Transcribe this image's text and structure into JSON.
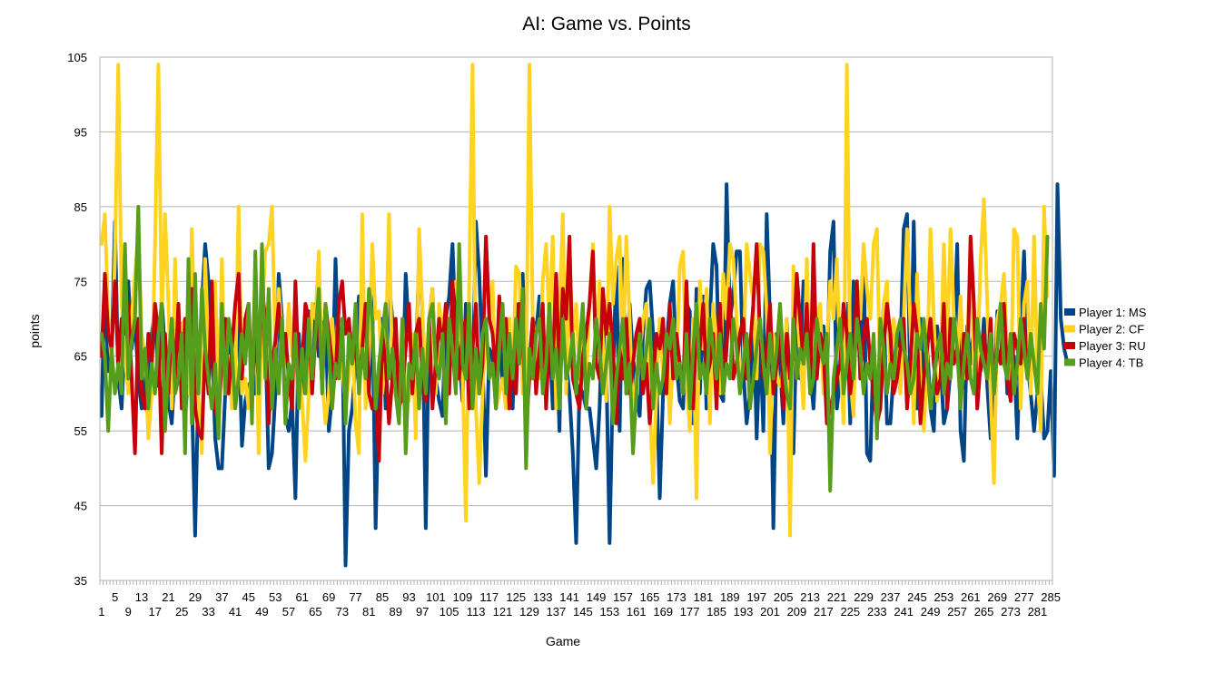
{
  "chart_data": {
    "type": "line",
    "title": "AI: Game vs. Points",
    "xlabel": "Game",
    "ylabel": "points",
    "ylim": [
      35,
      105
    ],
    "yticks": [
      35,
      45,
      55,
      65,
      75,
      85,
      95,
      105
    ],
    "grid": "horizontal",
    "legend_position": "right",
    "x_count": 285,
    "x_tick_step": 4,
    "series": [
      {
        "name": "Player 1: MS",
        "color": "#004586",
        "values": [
          57,
          76,
          63,
          65,
          83,
          62,
          58,
          68,
          75,
          66,
          70,
          62,
          58,
          64,
          55,
          68,
          71,
          61,
          73,
          65,
          59,
          56,
          64,
          70,
          68,
          57,
          63,
          60,
          41,
          62,
          72,
          80,
          75,
          68,
          54,
          50,
          50,
          60,
          66,
          68,
          67,
          70,
          53,
          59,
          61,
          62,
          60,
          66,
          70,
          68,
          50,
          52,
          60,
          76,
          70,
          57,
          55,
          59,
          46,
          68,
          60,
          69,
          71,
          66,
          72,
          65,
          69,
          70,
          55,
          60,
          78,
          64,
          70,
          37,
          55,
          58,
          64,
          73,
          70,
          69,
          60,
          73,
          42,
          61,
          70,
          58,
          75,
          70,
          60,
          63,
          59,
          76,
          68,
          65,
          62,
          79,
          71,
          42,
          70,
          74,
          62,
          59,
          57,
          70,
          73,
          80,
          68,
          65,
          59,
          72,
          70,
          60,
          83,
          76,
          64,
          49,
          66,
          65,
          58,
          69,
          61,
          69,
          70,
          58,
          72,
          69,
          76,
          62,
          64,
          70,
          68,
          73,
          66,
          63,
          68,
          58,
          70,
          55,
          78,
          64,
          60,
          52,
          40,
          61,
          60,
          58,
          58,
          54,
          50,
          58,
          72,
          64,
          40,
          62,
          77,
          55,
          78,
          60,
          72,
          65,
          60,
          57,
          68,
          74,
          75,
          68,
          63,
          46,
          60,
          66,
          72,
          75,
          64,
          59,
          58,
          72,
          71,
          56,
          74,
          60,
          73,
          58,
          70,
          80,
          77,
          60,
          59,
          88,
          70,
          73,
          79,
          79,
          63,
          56,
          60,
          72,
          54,
          67,
          55,
          84,
          70,
          42,
          68,
          64,
          56,
          70,
          60,
          52,
          70,
          62,
          75,
          70,
          63,
          58,
          67,
          65,
          69,
          62,
          79,
          83,
          58,
          62,
          60,
          72,
          56,
          75,
          68,
          65,
          79,
          52,
          51,
          67,
          58,
          62,
          72,
          56,
          56,
          63,
          68,
          66,
          82,
          84,
          60,
          83,
          58,
          70,
          62,
          67,
          58,
          55,
          69,
          64,
          56,
          58,
          63,
          67,
          80,
          55,
          51,
          69,
          64,
          69,
          64,
          63,
          70,
          61,
          54,
          58,
          71,
          69,
          70,
          60,
          62,
          65,
          54,
          68,
          79,
          64,
          60,
          55,
          60,
          62,
          54,
          55,
          63,
          49,
          88,
          70,
          66,
          64
        ]
      },
      {
        "name": "Player 2: CF",
        "color": "#ffd320",
        "values": [
          80,
          84,
          70,
          64,
          78,
          104,
          72,
          65,
          60,
          70,
          76,
          81,
          68,
          65,
          54,
          60,
          80,
          104,
          70,
          84,
          72,
          58,
          78,
          62,
          69,
          70,
          60,
          82,
          65,
          59,
          52,
          78,
          65,
          72,
          75,
          59,
          78,
          60,
          65,
          58,
          62,
          85,
          60,
          62,
          58,
          64,
          76,
          52,
          70,
          79,
          80,
          85,
          66,
          74,
          68,
          64,
          72,
          65,
          66,
          64,
          59,
          51,
          60,
          72,
          70,
          79,
          62,
          56,
          60,
          70,
          63,
          62,
          64,
          58,
          62,
          68,
          56,
          52,
          84,
          58,
          65,
          80,
          70,
          71,
          60,
          65,
          84,
          62,
          66,
          58,
          70,
          60,
          59,
          68,
          54,
          82,
          71,
          62,
          70,
          74,
          60,
          72,
          68,
          72,
          62,
          74,
          75,
          71,
          63,
          43,
          75,
          104,
          58,
          48,
          60,
          70,
          70,
          75,
          58,
          60,
          62,
          58,
          70,
          62,
          77,
          76,
          60,
          60,
          104,
          70,
          65,
          62,
          75,
          80,
          69,
          81,
          58,
          70,
          84,
          60,
          78,
          68,
          72,
          62,
          70,
          62,
          72,
          80,
          66,
          75,
          67,
          59,
          85,
          72,
          78,
          81,
          65,
          81,
          70,
          56,
          62,
          65,
          70,
          72,
          59,
          48,
          60,
          70,
          62,
          68,
          56,
          65,
          63,
          77,
          79,
          62,
          55,
          70,
          46,
          75,
          66,
          74,
          56,
          72,
          67,
          60,
          76,
          70,
          80,
          78,
          70,
          63,
          64,
          80,
          76,
          72,
          62,
          80,
          79,
          71,
          52,
          68,
          62,
          61,
          64,
          70,
          41,
          77,
          72,
          65,
          58,
          78,
          62,
          74,
          70,
          72,
          60,
          66,
          75,
          70,
          78,
          64,
          56,
          104,
          62,
          57,
          75,
          70,
          80,
          74,
          70,
          80,
          82,
          60,
          72,
          75,
          63,
          70,
          65,
          60,
          70,
          82,
          69,
          56,
          76,
          62,
          55,
          63,
          82,
          70,
          59,
          63,
          80,
          66,
          82,
          70,
          64,
          73,
          62,
          66,
          81,
          63,
          63,
          78,
          86,
          72,
          60,
          48,
          70,
          72,
          76,
          65,
          60,
          82,
          81,
          58,
          72,
          75,
          60,
          81,
          62,
          55,
          85,
          73
        ]
      },
      {
        "name": "Player 3: RU",
        "color": "#c5000b",
        "values": [
          65,
          76,
          68,
          66,
          75,
          64,
          70,
          68,
          72,
          62,
          52,
          70,
          60,
          58,
          68,
          64,
          72,
          68,
          52,
          68,
          60,
          70,
          62,
          72,
          58,
          70,
          65,
          74,
          58,
          55,
          54,
          66,
          60,
          75,
          58,
          56,
          65,
          70,
          60,
          66,
          72,
          76,
          62,
          70,
          72,
          60,
          68,
          62,
          74,
          70,
          56,
          64,
          67,
          72,
          64,
          68,
          62,
          58,
          75,
          62,
          64,
          72,
          70,
          60,
          68,
          70,
          61,
          72,
          68,
          64,
          62,
          72,
          75,
          68,
          70,
          64,
          67,
          62,
          66,
          72,
          60,
          58,
          60,
          51,
          68,
          64,
          56,
          62,
          70,
          58,
          60,
          66,
          72,
          60,
          68,
          70,
          62,
          59,
          70,
          58,
          64,
          70,
          66,
          72,
          60,
          75,
          64,
          62,
          68,
          70,
          58,
          66,
          72,
          60,
          64,
          81,
          70,
          68,
          62,
          73,
          66,
          70,
          58,
          64,
          60,
          72,
          68,
          55,
          62,
          70,
          60,
          66,
          72,
          58,
          68,
          64,
          76,
          62,
          74,
          70,
          81,
          62,
          60,
          58,
          65,
          68,
          72,
          79,
          64,
          62,
          74,
          68,
          72,
          66,
          56,
          66,
          62,
          70,
          60,
          64,
          68,
          70,
          60,
          64,
          56,
          62,
          68,
          66,
          70,
          60,
          72,
          62,
          68,
          64,
          60,
          75,
          62,
          58,
          70,
          66,
          72,
          62,
          64,
          68,
          58,
          72,
          60,
          66,
          74,
          62,
          64,
          68,
          70,
          62,
          66,
          72,
          80,
          68,
          62,
          66,
          72,
          60,
          64,
          70,
          58,
          68,
          62,
          66,
          76,
          70,
          64,
          72,
          60,
          80,
          62,
          68,
          66,
          56,
          58,
          60,
          62,
          64,
          72,
          68,
          60,
          64,
          75,
          62,
          68,
          70,
          64,
          60,
          56,
          58,
          66,
          72,
          68,
          60,
          62,
          66,
          70,
          58,
          64,
          72,
          68,
          56,
          62,
          66,
          70,
          64,
          60,
          62,
          72,
          58,
          70,
          64,
          66,
          60,
          68,
          62,
          81,
          72,
          58,
          64,
          68,
          62,
          70,
          60,
          66,
          64,
          72,
          62,
          59,
          68,
          66,
          64,
          70,
          62,
          67
        ]
      },
      {
        "name": "Player 4: TB",
        "color": "#579d1c",
        "values": [
          68,
          65,
          55,
          66,
          60,
          64,
          60,
          80,
          62,
          67,
          70,
          85,
          62,
          66,
          58,
          64,
          60,
          68,
          72,
          55,
          64,
          70,
          60,
          62,
          68,
          52,
          78,
          56,
          76,
          60,
          74,
          66,
          62,
          58,
          64,
          54,
          72,
          60,
          70,
          66,
          58,
          62,
          68,
          64,
          72,
          56,
          79,
          60,
          80,
          62,
          74,
          58,
          66,
          60,
          70,
          56,
          64,
          62,
          68,
          58,
          66,
          60,
          70,
          62,
          68,
          74,
          60,
          72,
          66,
          58,
          64,
          62,
          70,
          56,
          68,
          64,
          72,
          60,
          66,
          62,
          74,
          70,
          58,
          64,
          68,
          72,
          62,
          66,
          60,
          56,
          70,
          52,
          64,
          62,
          68,
          58,
          66,
          60,
          70,
          72,
          64,
          62,
          68,
          56,
          70,
          66,
          60,
          80,
          64,
          62,
          72,
          58,
          66,
          60,
          68,
          70,
          62,
          64,
          58,
          66,
          72,
          60,
          68,
          62,
          70,
          64,
          74,
          50,
          66,
          62,
          68,
          70,
          60,
          64,
          72,
          62,
          66,
          58,
          70,
          62,
          64,
          68,
          60,
          66,
          72,
          58,
          64,
          62,
          70,
          66,
          60,
          64,
          68,
          56,
          62,
          66,
          70,
          60,
          64,
          52,
          60,
          68,
          62,
          66,
          70,
          58,
          64,
          60,
          62,
          68,
          66,
          70,
          62,
          64,
          60,
          68,
          58,
          66,
          72,
          62,
          64,
          60,
          70,
          66,
          62,
          68,
          60,
          64,
          62,
          70,
          66,
          60,
          64,
          68,
          58,
          62,
          66,
          70,
          64,
          60,
          68,
          62,
          66,
          72,
          64,
          60,
          58,
          70,
          62,
          66,
          64,
          68,
          60,
          62,
          70,
          66,
          64,
          68,
          47,
          62,
          66,
          70,
          60,
          64,
          68,
          62,
          70,
          66,
          60,
          64,
          62,
          68,
          54,
          70,
          66,
          60,
          64,
          62,
          68,
          70,
          66,
          64,
          60,
          62,
          68,
          66,
          70,
          64,
          58,
          62,
          66,
          68,
          60,
          64,
          62,
          70,
          66,
          58,
          64,
          68,
          62,
          60,
          70,
          66,
          64,
          62,
          68,
          60,
          66,
          72,
          64,
          62,
          68,
          60,
          64,
          70,
          66,
          62,
          68,
          64,
          60,
          72,
          66,
          81
        ]
      }
    ]
  }
}
